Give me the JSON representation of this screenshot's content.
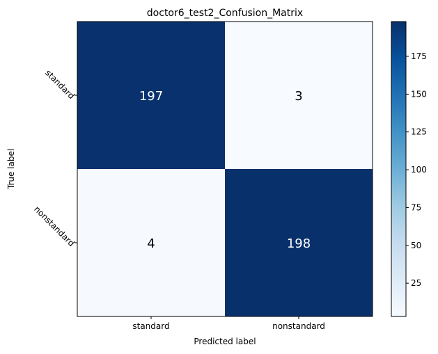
{
  "chart_data": {
    "type": "heatmap",
    "title": "doctor6_test2_Confusion_Matrix",
    "xlabel": "Predicted label",
    "ylabel": "True label",
    "x_categories": [
      "standard",
      "nonstandard"
    ],
    "y_categories": [
      "standard",
      "nonstandard"
    ],
    "matrix": [
      [
        197,
        3
      ],
      [
        4,
        198
      ]
    ],
    "colormap": "Blues",
    "color_range": [
      3,
      198
    ],
    "colorbar_ticks": [
      25,
      50,
      75,
      100,
      125,
      150,
      175
    ],
    "grid": false
  }
}
